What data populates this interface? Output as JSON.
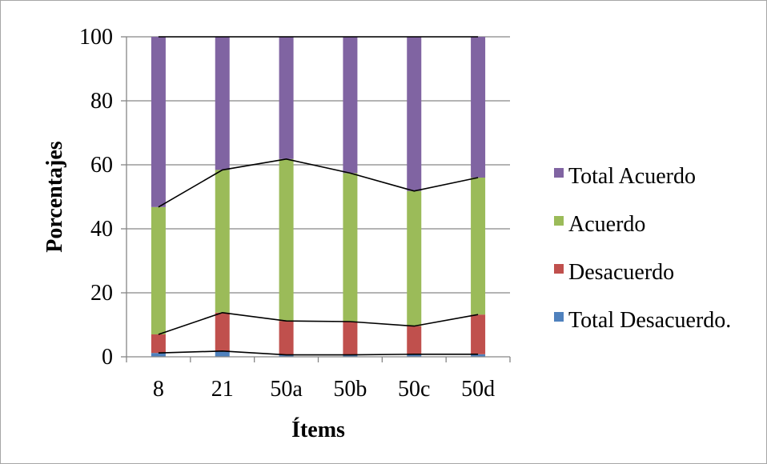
{
  "chart_data": {
    "type": "bar",
    "stacked": true,
    "categories": [
      "8",
      "21",
      "50a",
      "50b",
      "50c",
      "50d"
    ],
    "series": [
      {
        "name": "Total Desacuerdo.",
        "color": "#4f81bd",
        "values": [
          1.2,
          1.8,
          0.6,
          0.6,
          0.8,
          0.8
        ]
      },
      {
        "name": "Desacuerdo",
        "color": "#c0504d",
        "values": [
          5.8,
          12.0,
          10.6,
          10.4,
          8.8,
          12.4
        ]
      },
      {
        "name": "Acuerdo",
        "color": "#9bbb59",
        "values": [
          39.8,
          44.6,
          50.6,
          46.4,
          42.2,
          42.8
        ]
      },
      {
        "name": "Total Acuerdo",
        "color": "#8064a2",
        "values": [
          53.2,
          41.6,
          38.2,
          42.6,
          48.2,
          44.0
        ]
      }
    ],
    "xlabel": "Ítems",
    "ylabel": "Porcentajes",
    "ylim": [
      0,
      100
    ],
    "yticks": [
      "0",
      "20",
      "40",
      "60",
      "80",
      "100"
    ],
    "grid": true,
    "legend": "right",
    "connector_lines": true
  }
}
